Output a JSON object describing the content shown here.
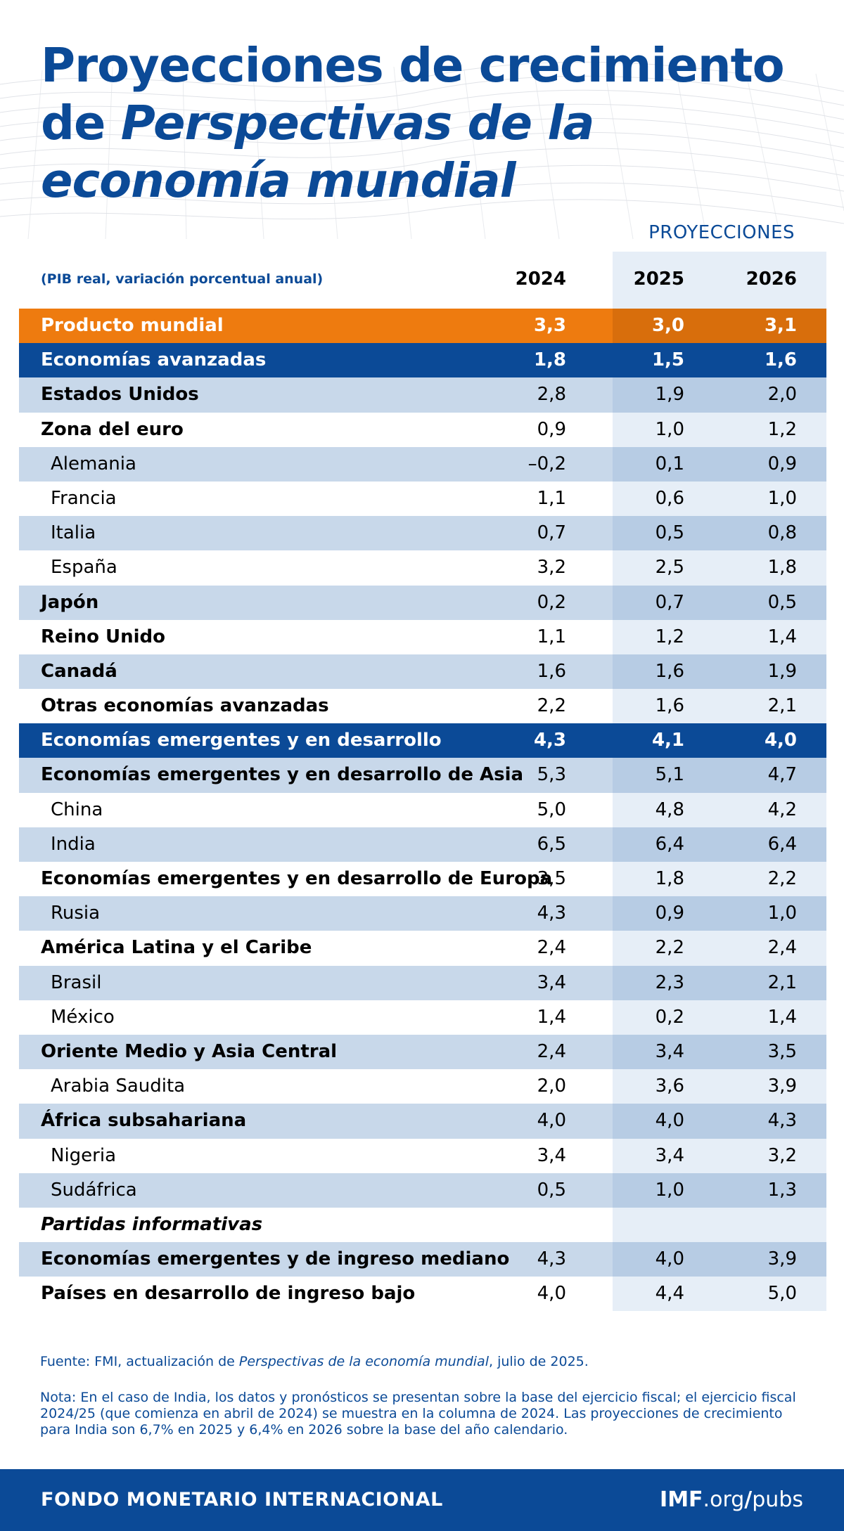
{
  "header": {
    "title_part1": "Proyecciones de crecimiento de",
    "title_italic": "Perspectivas de la economía mundial",
    "projections_label": "PROYECCIONES",
    "subtitle": "(PIB real, variación porcentual anual)"
  },
  "colors": {
    "brand_blue": "#0b4a97",
    "highlight_orange": "#ee7b0f",
    "row_shade": "#c8d8ea",
    "projection_shade": "#b7cce4"
  },
  "chart_data": {
    "type": "table",
    "columns": [
      "2024",
      "2025",
      "2026"
    ],
    "projection_columns": [
      "2025",
      "2026"
    ],
    "rows": [
      {
        "label": "Producto mundial",
        "values": [
          "3,3",
          "3,0",
          "3,1"
        ],
        "level": 0,
        "emphasis": "orange"
      },
      {
        "label": "Economías avanzadas",
        "values": [
          "1,8",
          "1,5",
          "1,6"
        ],
        "level": 0,
        "emphasis": "blue"
      },
      {
        "label": "Estados Unidos",
        "values": [
          "2,8",
          "1,9",
          "2,0"
        ],
        "level": 1
      },
      {
        "label": "Zona del euro",
        "values": [
          "0,9",
          "1,0",
          "1,2"
        ],
        "level": 1
      },
      {
        "label": "Alemania",
        "values": [
          "–0,2",
          "0,1",
          "0,9"
        ],
        "level": 2
      },
      {
        "label": "Francia",
        "values": [
          "1,1",
          "0,6",
          "1,0"
        ],
        "level": 2
      },
      {
        "label": "Italia",
        "values": [
          "0,7",
          "0,5",
          "0,8"
        ],
        "level": 2
      },
      {
        "label": "España",
        "values": [
          "3,2",
          "2,5",
          "1,8"
        ],
        "level": 2
      },
      {
        "label": "Japón",
        "values": [
          "0,2",
          "0,7",
          "0,5"
        ],
        "level": 1
      },
      {
        "label": "Reino Unido",
        "values": [
          "1,1",
          "1,2",
          "1,4"
        ],
        "level": 1
      },
      {
        "label": "Canadá",
        "values": [
          "1,6",
          "1,6",
          "1,9"
        ],
        "level": 1
      },
      {
        "label": "Otras economías avanzadas",
        "values": [
          "2,2",
          "1,6",
          "2,1"
        ],
        "level": 1
      },
      {
        "label": "Economías emergentes y en desarrollo",
        "values": [
          "4,3",
          "4,1",
          "4,0"
        ],
        "level": 0,
        "emphasis": "blue"
      },
      {
        "label": "Economías emergentes y en desarrollo de Asia",
        "values": [
          "5,3",
          "5,1",
          "4,7"
        ],
        "level": 1
      },
      {
        "label": "China",
        "values": [
          "5,0",
          "4,8",
          "4,2"
        ],
        "level": 2
      },
      {
        "label": "India",
        "values": [
          "6,5",
          "6,4",
          "6,4"
        ],
        "level": 2
      },
      {
        "label": "Economías emergentes y en desarrollo de Europa",
        "values": [
          "3,5",
          "1,8",
          "2,2"
        ],
        "level": 1
      },
      {
        "label": "Rusia",
        "values": [
          "4,3",
          "0,9",
          "1,0"
        ],
        "level": 2
      },
      {
        "label": "América Latina y el Caribe",
        "values": [
          "2,4",
          "2,2",
          "2,4"
        ],
        "level": 1
      },
      {
        "label": "Brasil",
        "values": [
          "3,4",
          "2,3",
          "2,1"
        ],
        "level": 2
      },
      {
        "label": "México",
        "values": [
          "1,4",
          "0,2",
          "1,4"
        ],
        "level": 2
      },
      {
        "label": "Oriente Medio y Asia Central",
        "values": [
          "2,4",
          "3,4",
          "3,5"
        ],
        "level": 1
      },
      {
        "label": "Arabia Saudita",
        "values": [
          "2,0",
          "3,6",
          "3,9"
        ],
        "level": 2
      },
      {
        "label": "África subsahariana",
        "values": [
          "4,0",
          "4,0",
          "4,3"
        ],
        "level": 1
      },
      {
        "label": "Nigeria",
        "values": [
          "3,4",
          "3,4",
          "3,2"
        ],
        "level": 2
      },
      {
        "label": "Sudáfrica",
        "values": [
          "0,5",
          "1,0",
          "1,3"
        ],
        "level": 2
      },
      {
        "label": "Partidas informativas",
        "values": [
          "",
          "",
          ""
        ],
        "level": 1,
        "emphasis": "italic"
      },
      {
        "label": "Economías emergentes y de ingreso mediano",
        "values": [
          "4,3",
          "4,0",
          "3,9"
        ],
        "level": 1
      },
      {
        "label": "Países en desarrollo de ingreso bajo",
        "values": [
          "4,0",
          "4,4",
          "5,0"
        ],
        "level": 1
      }
    ]
  },
  "source": {
    "prefix": "Fuente: FMI, actualización de ",
    "italic": "Perspectivas de la economía mundial",
    "suffix": ", julio de 2025."
  },
  "note": "Nota: En el caso de India, los datos y pronósticos se presentan sobre la base del ejercicio fiscal; el ejercicio fiscal 2024/25 (que comienza en abril de 2024) se muestra en la columna de 2024. Las proyecciones de crecimiento para India son 6,7% en 2025 y 6,4% en 2026 sobre la base del año calendario.",
  "footer": {
    "organization": "FONDO MONETARIO INTERNACIONAL",
    "link_bold": "IMF",
    "link_rest": ".org",
    "link_slash": "/",
    "link_end": "pubs"
  }
}
